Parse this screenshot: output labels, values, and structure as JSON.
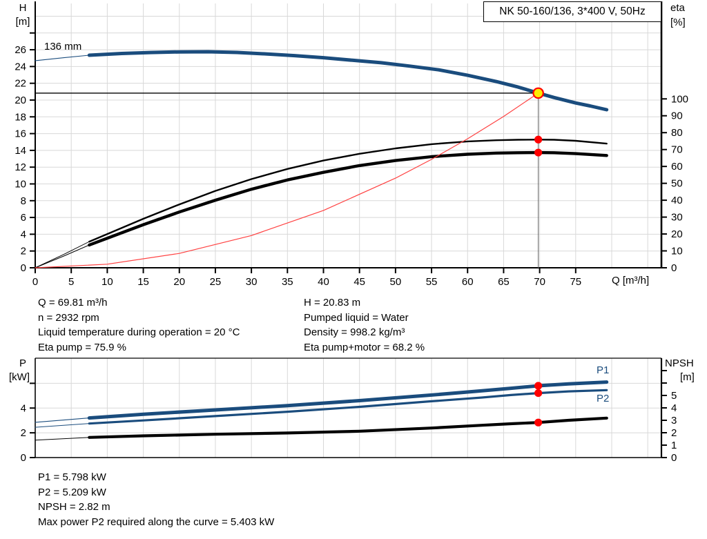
{
  "colors": {
    "curve_blue": "#1a4c7d",
    "curve_black": "#000000",
    "system_curve_red": "#ff4040",
    "marker_red": "#ff0000",
    "duty_point_yellow": "#ffec00",
    "drop_line_gray": "#6e6e6e",
    "grid_gray": "#d8d8d8",
    "axis_black": "#000000",
    "background": "#ffffff"
  },
  "chart_data": [
    {
      "type": "line",
      "name": "h-q-chart",
      "title": "NK 50-160/136, 3*400 V, 50Hz",
      "x_axis": {
        "label": "Q [m³/h]",
        "range": [
          0,
          86.9
        ],
        "ticks": [
          0,
          5,
          10,
          15,
          20,
          25,
          30,
          35,
          40,
          45,
          50,
          55,
          60,
          65,
          70,
          75
        ],
        "grid": [
          5,
          10,
          15,
          20,
          25,
          30,
          35,
          40,
          45,
          50,
          55,
          60,
          65,
          70,
          75,
          80,
          85
        ],
        "show_ticks": true
      },
      "y_axis": {
        "label_lines": [
          "H",
          "[m]"
        ],
        "range": [
          0,
          31.52
        ],
        "ticks": [
          0,
          2,
          4,
          6,
          8,
          10,
          12,
          14,
          16,
          18,
          20,
          22,
          24,
          26
        ],
        "extra_ticks": [
          28
        ],
        "grid": [
          2,
          4,
          6,
          8,
          10,
          12,
          14,
          16,
          18,
          20,
          22,
          24,
          26,
          28,
          30
        ]
      },
      "y2_axis": {
        "label_lines": [
          "eta",
          "[%]"
        ],
        "range": [
          0,
          156.5
        ],
        "ticks": [
          0,
          10,
          20,
          30,
          40,
          50,
          60,
          70,
          80,
          90,
          100
        ],
        "extra_ticks": [],
        "grid": []
      },
      "series": [
        {
          "name": "head-curve",
          "label": "136 mm",
          "axis": "y",
          "color": "curve_blue",
          "width": 5,
          "lead_width": 1.1,
          "points_thin": [
            [
              0,
              24.7
            ],
            [
              4,
              25.05
            ],
            [
              7.5,
              25.35
            ]
          ],
          "points": [
            [
              7.5,
              25.35
            ],
            [
              12,
              25.55
            ],
            [
              16,
              25.67
            ],
            [
              20,
              25.74
            ],
            [
              24,
              25.76
            ],
            [
              28,
              25.68
            ],
            [
              32,
              25.5
            ],
            [
              36,
              25.3
            ],
            [
              40,
              25.05
            ],
            [
              44,
              24.75
            ],
            [
              48,
              24.45
            ],
            [
              52,
              24.05
            ],
            [
              56,
              23.6
            ],
            [
              60,
              22.95
            ],
            [
              64,
              22.2
            ],
            [
              67,
              21.55
            ],
            [
              69.81,
              20.83
            ],
            [
              72,
              20.3
            ],
            [
              75,
              19.65
            ],
            [
              77,
              19.3
            ],
            [
              79.3,
              18.85
            ]
          ]
        },
        {
          "name": "eta-pump-curve",
          "axis": "y2",
          "color": "curve_black",
          "width": 2.4,
          "lead_width": 1,
          "points_thin": [
            [
              0,
              0
            ],
            [
              4,
              8
            ],
            [
              7.5,
              15.5
            ]
          ],
          "points": [
            [
              7.5,
              15.5
            ],
            [
              10,
              20
            ],
            [
              15,
              29
            ],
            [
              20,
              37.5
            ],
            [
              25,
              45.5
            ],
            [
              30,
              52.5
            ],
            [
              35,
              58.5
            ],
            [
              40,
              63.5
            ],
            [
              45,
              67.5
            ],
            [
              50,
              70.7
            ],
            [
              55,
              73.2
            ],
            [
              60,
              74.8
            ],
            [
              64,
              75.5
            ],
            [
              67,
              75.8
            ],
            [
              69.81,
              75.9
            ],
            [
              72,
              75.8
            ],
            [
              75,
              75.2
            ],
            [
              79.3,
              73.5
            ]
          ]
        },
        {
          "name": "eta-pump-motor-curve",
          "axis": "y2",
          "color": "curve_black",
          "width": 4.4,
          "lead_width": 1,
          "points_thin": [
            [
              0,
              0
            ],
            [
              4,
              7
            ],
            [
              7.5,
              13.5
            ]
          ],
          "points": [
            [
              7.5,
              13.5
            ],
            [
              10,
              17.5
            ],
            [
              15,
              25.5
            ],
            [
              20,
              33
            ],
            [
              25,
              40
            ],
            [
              30,
              46.5
            ],
            [
              35,
              52
            ],
            [
              40,
              56.5
            ],
            [
              45,
              60.5
            ],
            [
              50,
              63.5
            ],
            [
              55,
              65.8
            ],
            [
              60,
              67.2
            ],
            [
              64,
              67.9
            ],
            [
              67,
              68.1
            ],
            [
              69.81,
              68.2
            ],
            [
              72,
              68.1
            ],
            [
              75,
              67.6
            ],
            [
              79.3,
              66.5
            ]
          ]
        },
        {
          "name": "system-curve",
          "axis": "y",
          "color": "system_curve_red",
          "width": 1.2,
          "points": [
            [
              0,
              0
            ],
            [
              10,
              0.43
            ],
            [
              20,
              1.71
            ],
            [
              30,
              3.84
            ],
            [
              40,
              6.84
            ],
            [
              50,
              10.69
            ],
            [
              55,
              12.93
            ],
            [
              60,
              15.38
            ],
            [
              65,
              18.05
            ],
            [
              69.81,
              20.83
            ]
          ]
        }
      ],
      "annotations": {
        "h_line": {
          "v": 20.83,
          "x_from": 0,
          "x_to": 69.81,
          "color": "axis_black",
          "width": 1.4
        },
        "v_line": {
          "x": 69.81,
          "v_from": 20.83,
          "v_to": 0,
          "color": "drop_line_gray",
          "width": 1.1
        },
        "markers": [
          {
            "name": "duty-point-marker",
            "x": 69.81,
            "v": 20.83,
            "axis": "y",
            "r": 7.2,
            "fill": "duty_point_yellow",
            "stroke": "marker_red",
            "stroke_width": 2.2
          },
          {
            "name": "eta-pump-marker",
            "x": 69.81,
            "v": 75.9,
            "axis": "y2",
            "r": 5.6,
            "fill": "marker_red"
          },
          {
            "name": "eta-pump-motor-marker",
            "x": 69.81,
            "v": 68.2,
            "axis": "y2",
            "r": 5.6,
            "fill": "marker_red"
          }
        ]
      }
    },
    {
      "type": "line",
      "name": "p-npsh-chart",
      "x_axis": {
        "label": "",
        "range": [
          0,
          86.9
        ],
        "ticks": [],
        "grid": [
          5,
          10,
          15,
          20,
          25,
          30,
          35,
          40,
          45,
          50,
          55,
          60,
          65,
          70,
          75,
          80,
          85
        ],
        "show_ticks": false
      },
      "y_axis": {
        "label_lines": [
          "P",
          "[kW]"
        ],
        "range": [
          0,
          8.03
        ],
        "ticks": [
          0,
          2,
          4
        ],
        "extra_ticks": [
          6
        ],
        "grid": [
          2,
          4,
          6
        ]
      },
      "y2_axis": {
        "label_lines": [
          "NPSH",
          "[m]"
        ],
        "range": [
          0,
          8.0
        ],
        "ticks": [
          0,
          1,
          2,
          3,
          4,
          5
        ],
        "extra_ticks": [
          6,
          7
        ],
        "grid": []
      },
      "series": [
        {
          "name": "p1-curve",
          "label": "P1",
          "axis": "y",
          "color": "curve_blue",
          "width": 5,
          "lead_width": 1.1,
          "points_thin": [
            [
              0,
              2.85
            ],
            [
              7.5,
              3.2
            ]
          ],
          "points": [
            [
              7.5,
              3.2
            ],
            [
              15,
              3.5
            ],
            [
              25,
              3.85
            ],
            [
              35,
              4.2
            ],
            [
              45,
              4.6
            ],
            [
              55,
              5.05
            ],
            [
              62,
              5.4
            ],
            [
              66,
              5.6
            ],
            [
              69.81,
              5.8
            ],
            [
              74,
              5.95
            ],
            [
              79.3,
              6.1
            ]
          ]
        },
        {
          "name": "p2-curve",
          "label": "P2",
          "axis": "y",
          "color": "curve_blue",
          "width": 3.2,
          "lead_width": 1,
          "points_thin": [
            [
              0,
              2.45
            ],
            [
              7.5,
              2.75
            ]
          ],
          "points": [
            [
              7.5,
              2.75
            ],
            [
              15,
              3.0
            ],
            [
              25,
              3.35
            ],
            [
              35,
              3.7
            ],
            [
              45,
              4.1
            ],
            [
              55,
              4.55
            ],
            [
              62,
              4.85
            ],
            [
              66,
              5.05
            ],
            [
              69.81,
              5.21
            ],
            [
              74,
              5.35
            ],
            [
              79.3,
              5.45
            ]
          ]
        },
        {
          "name": "npsh-curve",
          "axis": "y2",
          "color": "curve_black",
          "width": 4.2,
          "lead_width": 1,
          "points_thin": [
            [
              0,
              1.4
            ],
            [
              7.5,
              1.62
            ]
          ],
          "points": [
            [
              7.5,
              1.62
            ],
            [
              15,
              1.75
            ],
            [
              25,
              1.88
            ],
            [
              35,
              1.98
            ],
            [
              45,
              2.12
            ],
            [
              55,
              2.38
            ],
            [
              62,
              2.6
            ],
            [
              66,
              2.72
            ],
            [
              69.81,
              2.82
            ],
            [
              74,
              3.0
            ],
            [
              79.3,
              3.18
            ]
          ]
        }
      ],
      "annotations": {
        "markers": [
          {
            "name": "p1-marker",
            "x": 69.81,
            "v": 5.798,
            "axis": "y",
            "r": 5.6,
            "fill": "marker_red"
          },
          {
            "name": "p2-marker",
            "x": 69.81,
            "v": 5.209,
            "axis": "y",
            "r": 5.6,
            "fill": "marker_red"
          },
          {
            "name": "npsh-marker",
            "x": 69.81,
            "v": 2.82,
            "axis": "y2",
            "r": 5.6,
            "fill": "marker_red"
          }
        ]
      }
    }
  ],
  "info_top": {
    "left": [
      "Q = 69.81 m³/h",
      "n = 2932 rpm",
      "Liquid temperature during operation = 20 °C",
      "Eta pump = 75.9 %"
    ],
    "right": [
      "H = 20.83 m",
      "Pumped liquid = Water",
      "Density = 998.2 kg/m³",
      "Eta pump+motor = 68.2 %"
    ]
  },
  "info_bottom": [
    "P1 = 5.798 kW",
    "P2 = 5.209 kW",
    "NPSH = 2.82 m",
    "Max power P2 required along the curve = 5.403 kW"
  ]
}
